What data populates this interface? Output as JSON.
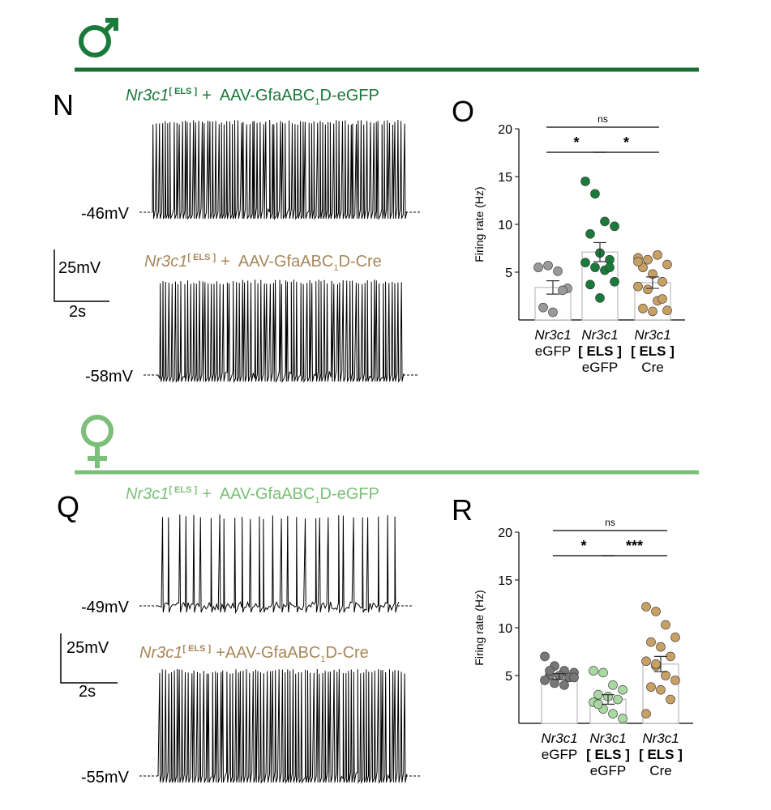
{
  "traces": {
    "male": {
      "letter": "N",
      "scale": {
        "y": "25mV",
        "x": "2s"
      },
      "items": [
        {
          "gene": "Nr3c1",
          "sup": "[ ELS ]",
          "vector": "+  AAV-GfaABC",
          "sub": "1",
          "end": "D-eGFP",
          "voltage": "-46mV",
          "color": "#1a7a3a"
        },
        {
          "gene": "Nr3c1",
          "sup": "[ ELS ]",
          "vector": "+  AAV-GfaABC",
          "sub": "1",
          "end": "D-Cre",
          "voltage": "-58mV",
          "color": "#a8875a"
        }
      ]
    },
    "female": {
      "letter": "Q",
      "scale": {
        "y": "25mV",
        "x": "2s"
      },
      "items": [
        {
          "gene": "Nr3c1",
          "sup": "[ ELS ]",
          "vector": "+  AAV-GfaABC",
          "sub": "1",
          "end": "D-eGFP",
          "voltage": "-49mV",
          "color": "#7cbf78"
        },
        {
          "gene": "Nr3c1",
          "sup": "[ ELS ]",
          "vector": "+AAV-GfaABC",
          "sub": "1",
          "end": "D-Cre",
          "voltage": "-55mV",
          "color": "#a8875a"
        }
      ]
    }
  },
  "chart_data": [
    {
      "type": "bar",
      "panel_label": "O",
      "ylabel": "Firing rate (Hz)",
      "ylim": [
        0,
        20
      ],
      "yticks": [
        5,
        10,
        15,
        20
      ],
      "categories": [
        {
          "gene": "Nr3c1",
          "condition": "eGFP"
        },
        {
          "gene": "Nr3c1",
          "tag": "[ ELS ]",
          "condition": "eGFP"
        },
        {
          "gene": "Nr3c1",
          "tag": "[ ELS ]",
          "condition": "Cre"
        }
      ],
      "values": [
        3.4,
        7.1,
        3.9
      ],
      "errors": [
        0.7,
        1.0,
        0.6
      ],
      "points": [
        [
          5.5,
          5.7,
          5.1,
          3.3,
          1.3,
          0.8,
          3.1
        ],
        [
          14.5,
          13.2,
          10.3,
          9.8,
          9.0,
          7.0,
          6.3,
          6.0,
          5.5,
          5.2,
          4.0,
          3.7,
          2.3,
          5.5
        ],
        [
          6.5,
          6.3,
          6.8,
          5.8,
          5.5,
          4.8,
          4.0,
          3.5,
          3.2,
          2.0,
          1.0,
          1.2,
          0.9,
          2.2,
          6.1
        ]
      ],
      "colors": [
        "#9a9a9a",
        "#1a7a3a",
        "#c9a064"
      ],
      "significance": [
        {
          "pair": [
            0,
            2
          ],
          "label": "ns"
        },
        {
          "pair": [
            0,
            1
          ],
          "label": "*"
        },
        {
          "pair": [
            1,
            2
          ],
          "label": "*"
        }
      ]
    },
    {
      "type": "bar",
      "panel_label": "R",
      "ylabel": "Firing rate (Hz)",
      "ylim": [
        0,
        20
      ],
      "yticks": [
        5,
        10,
        15,
        20
      ],
      "categories": [
        {
          "gene": "Nr3c1",
          "condition": "eGFP"
        },
        {
          "gene": "Nr3c1",
          "tag": "[ ELS ]",
          "condition": "eGFP"
        },
        {
          "gene": "Nr3c1",
          "tag": "[ ELS ]",
          "condition": "Cre"
        }
      ],
      "values": [
        4.9,
        2.5,
        6.2
      ],
      "errors": [
        0.3,
        0.5,
        0.8
      ],
      "points": [
        [
          7.0,
          6.0,
          5.5,
          5.3,
          5.0,
          5.0,
          4.8,
          4.5,
          4.2,
          4.0,
          4.8,
          5.5
        ],
        [
          5.5,
          5.3,
          4.0,
          3.5,
          3.0,
          2.8,
          2.5,
          2.2,
          1.5,
          1.0,
          0.5,
          2.0
        ],
        [
          12.2,
          11.7,
          10.3,
          9.0,
          8.5,
          8.0,
          7.0,
          6.5,
          6.0,
          5.0,
          4.5,
          3.8,
          3.5,
          2.5,
          1.0,
          6.2
        ]
      ],
      "colors": [
        "#777777",
        "#a9d8a2",
        "#c9a064"
      ],
      "significance": [
        {
          "pair": [
            0,
            2
          ],
          "label": "ns"
        },
        {
          "pair": [
            0,
            1
          ],
          "label": "*"
        },
        {
          "pair": [
            1,
            2
          ],
          "label": "***"
        }
      ]
    }
  ]
}
